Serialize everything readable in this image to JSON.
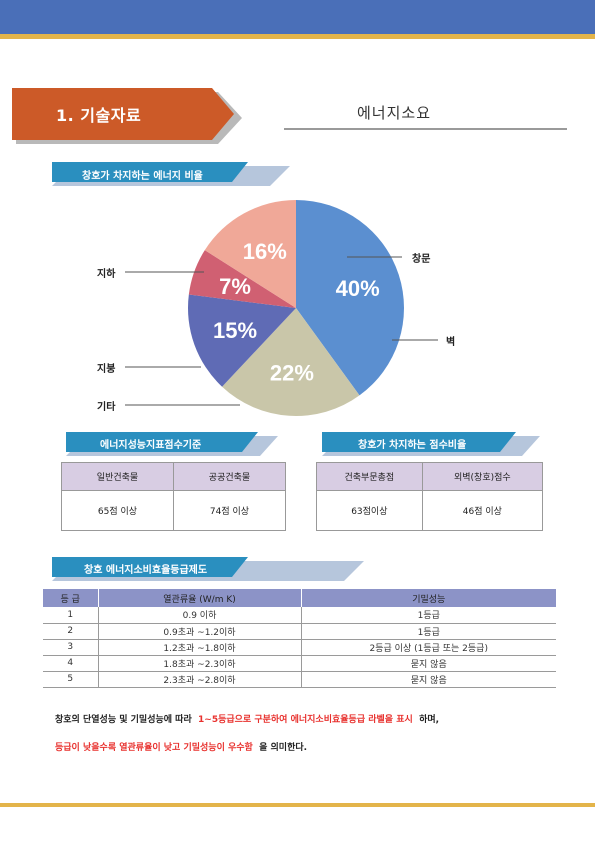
{
  "header": {
    "title": "1. 기술자료",
    "subject": "에너지소요"
  },
  "section1": {
    "title": "창호가 차지하는 에너지 비율"
  },
  "chart_data": {
    "type": "pie",
    "title": "창호가 차지하는 에너지 비율",
    "slices": [
      {
        "name": "창문",
        "value": 40,
        "label": "40%",
        "color": "#5b8fd0"
      },
      {
        "name": "벽",
        "value": 22,
        "label": "22%",
        "color": "#c9c6a9"
      },
      {
        "name": "",
        "value": 15,
        "label": "15%",
        "color": "#5f6bb5"
      },
      {
        "name": "",
        "value": 7,
        "label": "7%",
        "color": "#d06072"
      },
      {
        "name": "",
        "value": 16,
        "label": "16%",
        "color": "#f0a898"
      }
    ],
    "callouts": [
      "지하",
      "지붕",
      "기타",
      "창문",
      "벽"
    ]
  },
  "section2": {
    "title": "에너지성능지표점수기준",
    "headers": [
      "일반건축물",
      "공공건축물"
    ],
    "values": [
      "65점 이상",
      "74점 이상"
    ]
  },
  "section3": {
    "title": "창호가 차지하는 점수비율",
    "headers": [
      "건축부문총점",
      "외벽(창호)점수"
    ],
    "values": [
      "63점이상",
      "46점 이상"
    ]
  },
  "section4": {
    "title": "창호 에너지소비효율등급제도",
    "columns": [
      "등 급",
      "열관류율 (W/m K)",
      "기밀성능"
    ],
    "rows": [
      [
        "1",
        "0.9 이하",
        "1등급"
      ],
      [
        "2",
        "0.9초과 ~1.2이하",
        "1등급"
      ],
      [
        "3",
        "1.2초과 ~1.8이하",
        "2등급 이상 (1등급 또는 2등급)"
      ],
      [
        "4",
        "1.8초과 ~2.3이하",
        "묻지 않음"
      ],
      [
        "5",
        "2.3초과 ~2.8이하",
        "묻지 않음"
      ]
    ]
  },
  "notes": {
    "line1_a": "창호의 단열성능 및 기밀성능에 따라",
    "line1_red": "1~5등급으로 구분하여 에너지소비효율등급 라벨을 표시",
    "line1_b": "하며,",
    "line2_red": "등급이 낮을수록 열관류율이 낮고 기밀성능이 우수함",
    "line2_b": "을 의미한다."
  }
}
